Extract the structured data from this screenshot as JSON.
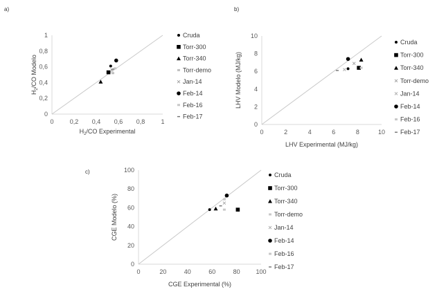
{
  "chart_data": [
    {
      "id": "a",
      "panel_label": "a)",
      "type": "scatter",
      "title": "",
      "xlabel_main": "H",
      "xlabel_sub": "2",
      "xlabel_rest": "/CO Experimental",
      "ylabel_main": "H",
      "ylabel_sub": "2",
      "ylabel_rest": "/CO Modelo",
      "xlim": [
        0,
        1
      ],
      "ylim": [
        0,
        1
      ],
      "xticks": [
        "0",
        "0,2",
        "0,4",
        "0,6",
        "0,8",
        "1"
      ],
      "yticks": [
        "0",
        "0,2",
        "0,4",
        "0,6",
        "0,8",
        "1"
      ],
      "xtick_values": [
        0,
        0.2,
        0.4,
        0.6,
        0.8,
        1
      ],
      "ytick_values": [
        0,
        0.2,
        0.4,
        0.6,
        0.8,
        1
      ],
      "parity_line": true,
      "legend_position": "right",
      "series": [
        {
          "name": "Cruda",
          "marker": "dot",
          "color": "#000000",
          "x": 0.53,
          "y": 0.61
        },
        {
          "name": "Torr-300",
          "marker": "square",
          "color": "#000000",
          "x": 0.51,
          "y": 0.53
        },
        {
          "name": "Torr-340",
          "marker": "triangle",
          "color": "#000000",
          "x": 0.44,
          "y": 0.41
        },
        {
          "name": "Torr-demo",
          "marker": "dash",
          "color": "#c0c0c0",
          "x": 0.55,
          "y": 0.52
        },
        {
          "name": "Jan-14",
          "marker": "x",
          "color": "#a0a0a0",
          "x": 0.54,
          "y": 0.56
        },
        {
          "name": "Feb-14",
          "marker": "circle",
          "color": "#000000",
          "x": 0.58,
          "y": 0.68
        },
        {
          "name": "Feb-16",
          "marker": "dash",
          "color": "#c8c8c8",
          "x": 0.57,
          "y": 0.58
        },
        {
          "name": "Feb-17",
          "marker": "minus",
          "color": "#707070",
          "x": 0.55,
          "y": 0.57
        }
      ]
    },
    {
      "id": "b",
      "panel_label": "b)",
      "type": "scatter",
      "title": "",
      "xlabel": "LHV Experimental  (MJ/kg)",
      "ylabel": "LHV  Modelo (MJ/kg)",
      "xlim": [
        0,
        10
      ],
      "ylim": [
        0,
        10
      ],
      "xticks": [
        "0",
        "2",
        "4",
        "6",
        "8",
        "10"
      ],
      "yticks": [
        "0",
        "2",
        "4",
        "6",
        "8",
        "10"
      ],
      "xtick_values": [
        0,
        2,
        4,
        6,
        8,
        10
      ],
      "ytick_values": [
        0,
        2,
        4,
        6,
        8,
        10
      ],
      "parity_line": true,
      "legend_position": "right",
      "series": [
        {
          "name": "Cruda",
          "marker": "dot",
          "color": "#000000",
          "x": 7.2,
          "y": 6.3
        },
        {
          "name": "Torr-300",
          "marker": "square",
          "color": "#000000",
          "x": 8.1,
          "y": 6.4
        },
        {
          "name": "Torr-340",
          "marker": "triangle",
          "color": "#000000",
          "x": 8.3,
          "y": 7.3
        },
        {
          "name": "Torr-demo",
          "marker": "x",
          "color": "#a0a0a0",
          "x": 7.7,
          "y": 6.9
        },
        {
          "name": "Jan-14",
          "marker": "x",
          "color": "#b0b0b0",
          "x": 6.9,
          "y": 6.2
        },
        {
          "name": "Feb-14",
          "marker": "circle",
          "color": "#000000",
          "x": 7.2,
          "y": 7.4
        },
        {
          "name": "Feb-16",
          "marker": "dash",
          "color": "#c8c8c8",
          "x": 8.3,
          "y": 6.4
        },
        {
          "name": "Feb-17",
          "marker": "minus",
          "color": "#707070",
          "x": 6.3,
          "y": 6.1
        }
      ]
    },
    {
      "id": "c",
      "panel_label": "c)",
      "type": "scatter",
      "title": "",
      "xlabel": "CGE Experimental (%)",
      "ylabel": "CGE Modelo (%)",
      "xlim": [
        0,
        100
      ],
      "ylim": [
        0,
        100
      ],
      "xticks": [
        "0",
        "20",
        "40",
        "60",
        "80",
        "100"
      ],
      "yticks": [
        "0",
        "20",
        "40",
        "60",
        "80",
        "100"
      ],
      "xtick_values": [
        0,
        20,
        40,
        60,
        80,
        100
      ],
      "ytick_values": [
        0,
        20,
        40,
        60,
        80,
        100
      ],
      "parity_line": true,
      "legend_position": "right",
      "series": [
        {
          "name": "Cruda",
          "marker": "dot",
          "color": "#000000",
          "x": 58,
          "y": 58
        },
        {
          "name": "Torr-300",
          "marker": "square",
          "color": "#000000",
          "x": 81,
          "y": 58
        },
        {
          "name": "Torr-340",
          "marker": "triangle",
          "color": "#000000",
          "x": 63,
          "y": 59
        },
        {
          "name": "Torr-demo",
          "marker": "dash",
          "color": "#c8c8c8",
          "x": 70,
          "y": 58
        },
        {
          "name": "Jan-14",
          "marker": "x",
          "color": "#b0b0b0",
          "x": 70,
          "y": 65
        },
        {
          "name": "Feb-14",
          "marker": "circle",
          "color": "#000000",
          "x": 72,
          "y": 73
        },
        {
          "name": "Feb-16",
          "marker": "dash",
          "color": "#c8c8c8",
          "x": 70,
          "y": 69
        },
        {
          "name": "Feb-17",
          "marker": "minus",
          "color": "#707070",
          "x": 67,
          "y": 62
        }
      ]
    }
  ]
}
